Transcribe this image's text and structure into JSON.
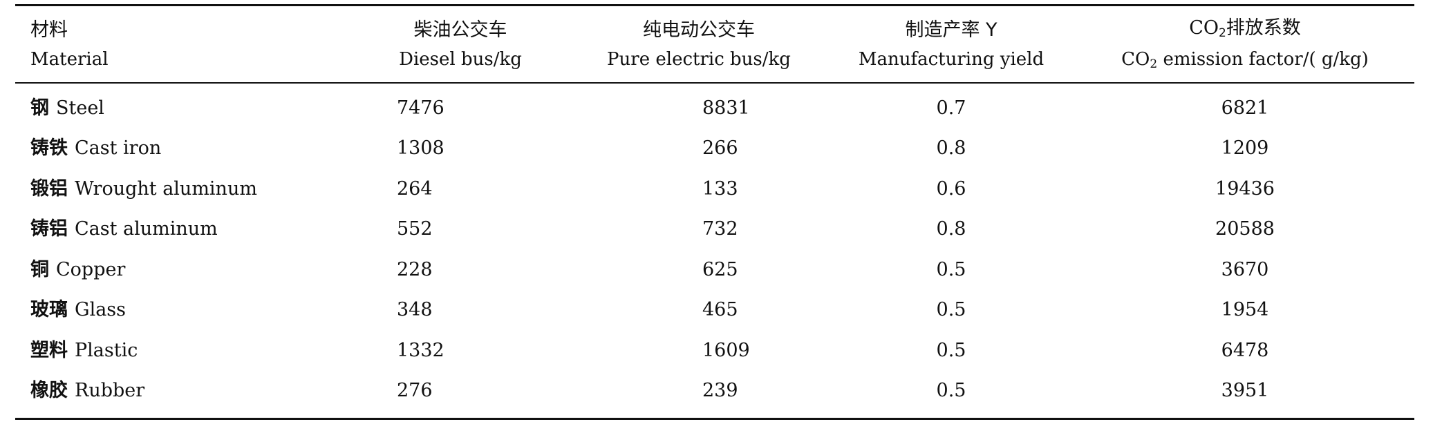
{
  "table": {
    "headers": [
      {
        "zh": "材料",
        "en": "Material"
      },
      {
        "zh": "柴油公交车",
        "en": "Diesel bus/kg"
      },
      {
        "zh": "纯电动公交车",
        "en": "Pure electric bus/kg"
      },
      {
        "zh": "制造产率 Y",
        "en": "Manufacturing yield"
      },
      {
        "zh_prefix": "CO",
        "zh_sub": "2",
        "zh": "排放系数",
        "en_prefix": "CO",
        "en_sub": "2",
        "en": " emission factor/( g/kg)"
      }
    ],
    "rows": [
      {
        "zh": "钢",
        "en": "Steel",
        "diesel": "7476",
        "electric": "8831",
        "yield": "0.7",
        "factor": "6821"
      },
      {
        "zh": "铸铁",
        "en": "Cast iron",
        "diesel": "1308",
        "electric": "266",
        "yield": "0.8",
        "factor": "1209"
      },
      {
        "zh": "锻铝",
        "en": "Wrought aluminum",
        "diesel": "264",
        "electric": "133",
        "yield": "0.6",
        "factor": "19436"
      },
      {
        "zh": "铸铝",
        "en": "Cast aluminum",
        "diesel": "552",
        "electric": "732",
        "yield": "0.8",
        "factor": "20588"
      },
      {
        "zh": "铜",
        "en": "Copper",
        "diesel": "228",
        "electric": "625",
        "yield": "0.5",
        "factor": "3670"
      },
      {
        "zh": "玻璃",
        "en": "Glass",
        "diesel": "348",
        "electric": "465",
        "yield": "0.5",
        "factor": "1954"
      },
      {
        "zh": "塑料",
        "en": "Plastic",
        "diesel": "1332",
        "electric": "1609",
        "yield": "0.5",
        "factor": "6478"
      },
      {
        "zh": "橡胶",
        "en": "Rubber",
        "diesel": "276",
        "electric": "239",
        "yield": "0.5",
        "factor": "3951"
      }
    ]
  }
}
